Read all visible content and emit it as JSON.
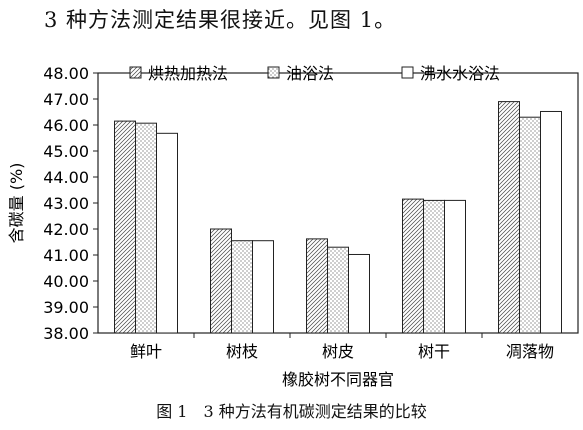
{
  "heading": "3 种方法测定结果很接近。见图 1。",
  "caption": "图 1　3 种方法有机碳测定结果的比较",
  "chart_data": {
    "type": "bar",
    "categories": [
      "鲜叶",
      "树枝",
      "树皮",
      "树干",
      "凋落物"
    ],
    "series": [
      {
        "name": "烘热加热法",
        "values": [
          46.15,
          42.0,
          41.62,
          43.15,
          46.9
        ],
        "pattern": "diagonal"
      },
      {
        "name": "油浴法",
        "values": [
          46.07,
          41.55,
          41.3,
          43.1,
          46.3
        ],
        "pattern": "dots"
      },
      {
        "name": "沸水水浴法",
        "values": [
          45.68,
          41.55,
          41.02,
          43.1,
          46.52
        ],
        "pattern": "plain"
      }
    ],
    "xlabel": "橡胶树不同器官",
    "ylabel": "含碳量 (%)",
    "ylim": [
      38,
      48
    ],
    "yticks": [
      "38.00",
      "39.00",
      "40.00",
      "41.00",
      "42.00",
      "43.00",
      "44.00",
      "45.00",
      "46.00",
      "47.00",
      "48.00"
    ],
    "legend_position": "top",
    "grid": false
  }
}
